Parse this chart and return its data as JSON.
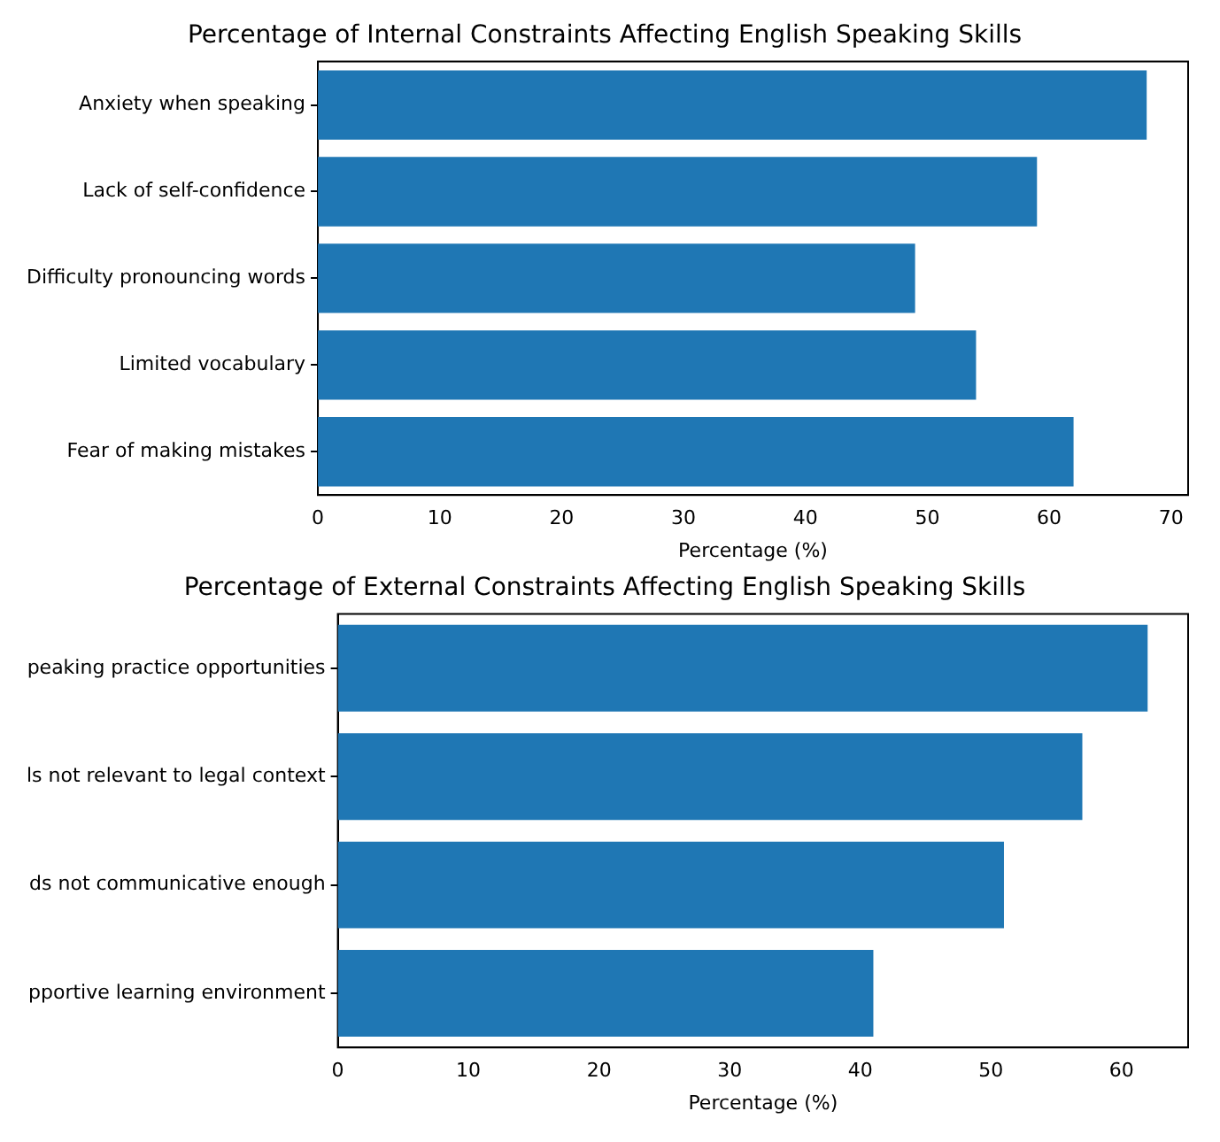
{
  "chart_data": [
    {
      "type": "bar",
      "orientation": "horizontal",
      "title": "Percentage of Internal Constraints Affecting English Speaking Skills",
      "xlabel": "Percentage (%)",
      "categories": [
        "Anxiety when speaking",
        "Lack of self-confidence",
        "Difficulty pronouncing words",
        "Limited vocabulary",
        "Fear of making mistakes"
      ],
      "values": [
        68,
        59,
        49,
        54,
        62
      ],
      "color": "#1f77b4",
      "xlim": [
        0,
        71.4
      ],
      "xticks": [
        0,
        10,
        20,
        30,
        40,
        50,
        60,
        70
      ],
      "grid": false,
      "legend": false
    },
    {
      "type": "bar",
      "orientation": "horizontal",
      "title": "Percentage of External Constraints Affecting English Speaking Skills",
      "xlabel": "Percentage (%)",
      "categories": [
        "peaking practice opportunities",
        "ls not relevant to legal context",
        "ds not communicative enough",
        "pportive learning environment"
      ],
      "values": [
        62,
        57,
        51,
        41
      ],
      "color": "#1f77b4",
      "xlim": [
        0,
        65.1
      ],
      "xticks": [
        0,
        10,
        20,
        30,
        40,
        50,
        60
      ],
      "grid": false,
      "legend": false
    }
  ]
}
